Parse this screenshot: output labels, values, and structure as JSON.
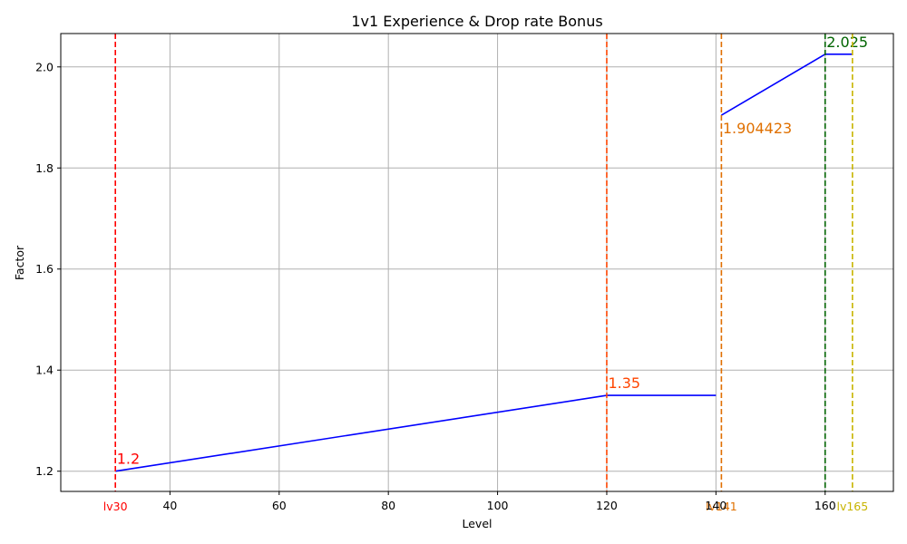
{
  "chart_data": {
    "type": "line",
    "title": "1v1 Experience & Drop rate Bonus",
    "xlabel": "Level",
    "ylabel": "Factor",
    "xlim": [
      20,
      172.5
    ],
    "ylim": [
      1.16,
      2.066
    ],
    "xticks": [
      40,
      60,
      80,
      100,
      120,
      140,
      160
    ],
    "yticks": [
      "1.2",
      "1.4",
      "1.6",
      "1.8",
      "2.0"
    ],
    "grid": true,
    "series": [
      {
        "color": "#0000ff",
        "segments": [
          [
            [
              30,
              1.2
            ],
            [
              120,
              1.35
            ],
            [
              140,
              1.35
            ]
          ],
          [
            [
              141,
              1.904423
            ],
            [
              160,
              2.025
            ],
            [
              165,
              2.025
            ]
          ]
        ]
      }
    ],
    "vertical_markers": [
      {
        "x": 30,
        "color": "#ff0000",
        "value_label": "1.2",
        "value_y": 1.2,
        "level_label": "lv30"
      },
      {
        "x": 120,
        "color": "#ff4500",
        "value_label": "1.35",
        "value_y": 1.35,
        "level_label": ""
      },
      {
        "x": 141,
        "color": "#e07000",
        "value_label": "1.904423",
        "value_y": 1.904423,
        "level_label": "lv141"
      },
      {
        "x": 160,
        "color": "#006400",
        "value_label": "2.025",
        "value_y": 2.025,
        "level_label": ""
      },
      {
        "x": 165,
        "color": "#c8b400",
        "value_label": "",
        "value_y": 2.025,
        "level_label": "lv165"
      }
    ]
  }
}
